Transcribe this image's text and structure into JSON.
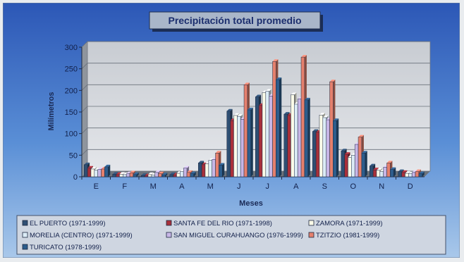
{
  "chart_data": {
    "type": "bar",
    "title": "Precipitación total promedio",
    "xlabel": "Meses",
    "ylabel": "Milímetros",
    "ylim": [
      0,
      300
    ],
    "yticks": [
      0,
      50,
      100,
      150,
      200,
      250,
      300
    ],
    "grid": true,
    "legend_position": "bottom",
    "categories": [
      "E",
      "F",
      "M",
      "A",
      "M",
      "J",
      "J",
      "A",
      "S",
      "O",
      "N",
      "D"
    ],
    "series": [
      {
        "name": "EL PUERTO (1971-1999)",
        "color": "#2f4f73",
        "values": [
          28,
          6,
          3,
          5,
          32,
          152,
          185,
          145,
          105,
          60,
          25,
          12
        ]
      },
      {
        "name": "SANTA FE DEL RIO (1971-1998)",
        "color": "#a8303a",
        "values": [
          20,
          5,
          2,
          4,
          28,
          130,
          165,
          142,
          103,
          52,
          16,
          10
        ]
      },
      {
        "name": "ZAMORA (1971-1999)",
        "color": "#fbfbe8",
        "values": [
          18,
          6,
          5,
          8,
          30,
          142,
          195,
          190,
          143,
          45,
          15,
          8
        ]
      },
      {
        "name": "MORELIA (CENTRO) (1971-1999)",
        "color": "#dcecf6",
        "values": [
          15,
          5,
          4,
          12,
          38,
          140,
          198,
          168,
          137,
          50,
          12,
          7
        ]
      },
      {
        "name": "SAN MIGUEL CURAHUANGO (1976-1999)",
        "color": "#c7b6e6",
        "values": [
          17,
          7,
          10,
          20,
          40,
          133,
          187,
          180,
          132,
          75,
          22,
          10
        ]
      },
      {
        "name": "TZITZIO (1981-1999)",
        "color": "#e5806d",
        "values": [
          18,
          9,
          7,
          10,
          55,
          213,
          267,
          277,
          220,
          92,
          32,
          12
        ]
      },
      {
        "name": "TURICATO (1978-1999)",
        "color": "#2d5d8c",
        "values": [
          23,
          5,
          4,
          7,
          27,
          155,
          225,
          178,
          130,
          55,
          17,
          7
        ]
      }
    ]
  }
}
